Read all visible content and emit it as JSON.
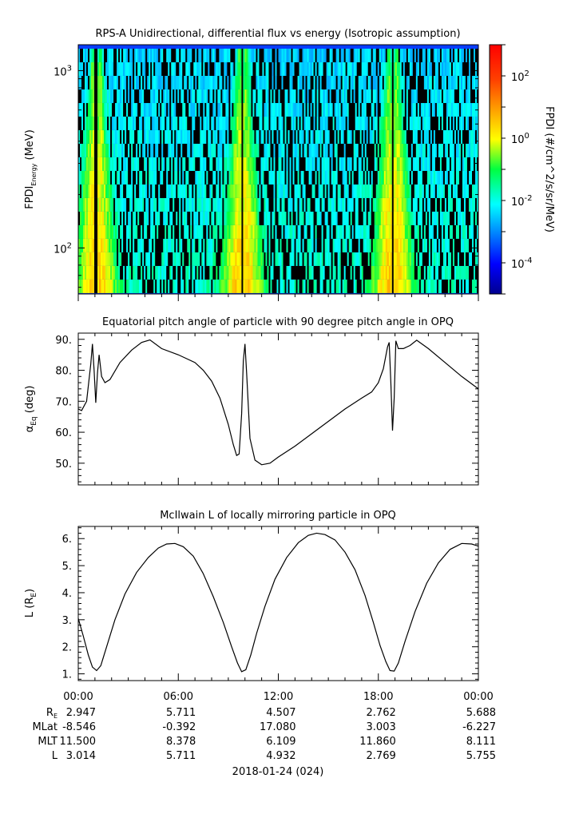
{
  "chart_data": [
    {
      "type": "heatmap",
      "title": "RPS-A Unidirectional, differential flux vs energy (Isotropic assumption)",
      "ylabel": "FPDI",
      "ylabel_sub": "Energy",
      "ylabel_unit": " (MeV)",
      "yscale": "log",
      "ylim": [
        55,
        1400
      ],
      "y_ticks": [
        {
          "base": "10",
          "exp": "2",
          "value": 100
        },
        {
          "base": "10",
          "exp": "3",
          "value": 1000
        }
      ],
      "colorbar": {
        "label": "FPDI (#/cm^2/s/sr/MeV)",
        "scale": "log",
        "range": [
          1e-05,
          1000.0
        ],
        "ticks": [
          {
            "base": "10",
            "exp": "2",
            "value": 100
          },
          {
            "base": "10",
            "exp": "0",
            "value": 1
          },
          {
            "base": "10",
            "exp": "-2",
            "value": 0.01
          },
          {
            "base": "10",
            "exp": "-4",
            "value": 0.0001
          }
        ]
      },
      "green_peaks_hours": [
        0.85,
        1.25,
        9.6,
        10.0,
        18.6,
        19.05
      ],
      "dark_gap_hours": [
        1.02,
        9.8,
        18.82
      ],
      "x_range_hours": [
        0,
        24
      ]
    },
    {
      "type": "line",
      "title": "Equatorial pitch angle of particle with 90 degree pitch angle in OPQ",
      "ylabel": "α",
      "ylabel_sub": "Eq",
      "ylabel_unit": " (deg)",
      "ylim": [
        43,
        92
      ],
      "y_ticks": [
        50,
        60,
        70,
        80,
        90
      ],
      "y_ticklabels": [
        "50.",
        "60.",
        "70.",
        "80.",
        "90."
      ],
      "x": [
        0,
        0.2,
        0.5,
        0.75,
        0.85,
        0.95,
        1.05,
        1.15,
        1.25,
        1.4,
        1.6,
        1.9,
        2.5,
        3.2,
        3.8,
        4.3,
        5.0,
        6.0,
        7.0,
        7.5,
        8.0,
        8.5,
        9.0,
        9.3,
        9.5,
        9.65,
        9.8,
        9.9,
        10.0,
        10.1,
        10.3,
        10.6,
        11.0,
        11.5,
        12.0,
        13.0,
        14.0,
        15.0,
        16.0,
        17.0,
        17.6,
        18.0,
        18.3,
        18.55,
        18.65,
        18.75,
        18.85,
        18.95,
        19.05,
        19.2,
        19.5,
        19.9,
        20.3,
        21.0,
        22.0,
        23.0,
        24.0
      ],
      "y": [
        67.5,
        67.0,
        70.0,
        82.0,
        88.5,
        80.0,
        69.5,
        79.0,
        85.0,
        78.0,
        76.0,
        77.0,
        82.5,
        86.5,
        89.0,
        89.8,
        87.0,
        85.0,
        82.5,
        80.0,
        76.5,
        71.0,
        62.5,
        56.0,
        52.5,
        53.0,
        66.0,
        83.0,
        88.5,
        79.0,
        58.0,
        51.0,
        49.5,
        50.0,
        52.0,
        55.5,
        59.5,
        63.5,
        67.5,
        71.0,
        73.0,
        76.0,
        80.5,
        87.5,
        89.0,
        76.0,
        60.5,
        71.0,
        89.5,
        87.0,
        87.0,
        88.0,
        89.7,
        87.0,
        82.5,
        78.0,
        74.0
      ]
    },
    {
      "type": "line",
      "title": "McIlwain L of locally mirroring particle in OPQ",
      "ylabel": "L (R",
      "ylabel_sub": "E",
      "ylabel_unit": ")",
      "ylim": [
        0.75,
        6.45
      ],
      "y_ticks": [
        1,
        2,
        3,
        4,
        5,
        6
      ],
      "y_ticklabels": [
        "1.",
        "2.",
        "3.",
        "4.",
        "5.",
        "6."
      ],
      "x": [
        0,
        0.3,
        0.6,
        0.85,
        1.1,
        1.35,
        1.7,
        2.2,
        2.8,
        3.5,
        4.2,
        4.8,
        5.3,
        5.8,
        6.3,
        6.9,
        7.5,
        8.1,
        8.7,
        9.2,
        9.55,
        9.8,
        10.05,
        10.35,
        10.7,
        11.2,
        11.8,
        12.5,
        13.2,
        13.8,
        14.3,
        14.8,
        15.4,
        16.0,
        16.6,
        17.2,
        17.7,
        18.1,
        18.45,
        18.7,
        18.95,
        19.2,
        19.6,
        20.2,
        20.9,
        21.6,
        22.3,
        23.0,
        23.6,
        24.0
      ],
      "y": [
        3.05,
        2.4,
        1.7,
        1.25,
        1.12,
        1.3,
        2.0,
        3.0,
        3.95,
        4.75,
        5.3,
        5.65,
        5.8,
        5.82,
        5.7,
        5.35,
        4.7,
        3.85,
        2.9,
        2.0,
        1.4,
        1.08,
        1.15,
        1.7,
        2.5,
        3.5,
        4.5,
        5.3,
        5.85,
        6.12,
        6.2,
        6.15,
        5.95,
        5.5,
        4.85,
        3.9,
        2.9,
        2.05,
        1.45,
        1.12,
        1.1,
        1.4,
        2.2,
        3.3,
        4.35,
        5.1,
        5.6,
        5.82,
        5.8,
        5.72
      ]
    }
  ],
  "x_axis": {
    "tick_labels": [
      "00:00",
      "06:00",
      "12:00",
      "18:00",
      "00:00"
    ],
    "tick_hours": [
      0,
      6,
      12,
      18,
      24
    ],
    "date_label": "2018-01-24 (024)"
  },
  "ephemeris": {
    "row_labels": [
      {
        "main": "R",
        "sub": "E"
      },
      {
        "main": "MLat",
        "sub": ""
      },
      {
        "main": "MLT",
        "sub": ""
      },
      {
        "main": "L",
        "sub": ""
      }
    ],
    "rows": [
      [
        "2.947",
        "5.711",
        "4.507",
        "2.762",
        "5.688"
      ],
      [
        "-8.546",
        "-0.392",
        "17.080",
        "3.003",
        "-6.227"
      ],
      [
        "11.500",
        "8.378",
        "6.109",
        "11.860",
        "8.111"
      ],
      [
        "3.014",
        "5.711",
        "4.932",
        "2.769",
        "5.755"
      ]
    ]
  }
}
